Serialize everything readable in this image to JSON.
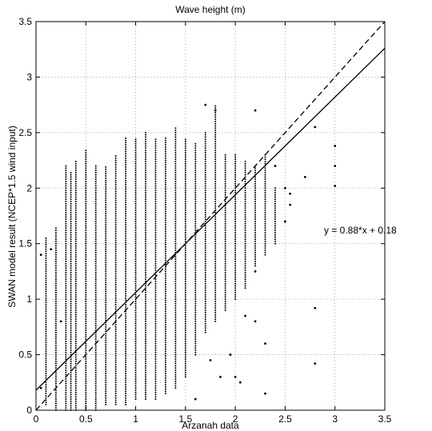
{
  "chart_data": {
    "type": "scatter",
    "title": "Wave height (m)",
    "xlabel": "Arzanah data",
    "ylabel": "SWAN model result (NCEP*1.5 wind input)",
    "xlim": [
      0,
      3.5
    ],
    "ylim": [
      0,
      3.5
    ],
    "xticks": [
      "0",
      "0.5",
      "1",
      "1.5",
      "2",
      "2.5",
      "3",
      "3.5"
    ],
    "yticks": [
      "0",
      "0.5",
      "1",
      "1.5",
      "2",
      "2.5",
      "3",
      "3.5"
    ],
    "grid": true,
    "annotation": "y = 0.88*x + 0.18",
    "lines": [
      {
        "style": "solid",
        "slope": 0.88,
        "intercept": 0.18
      },
      {
        "style": "dashed",
        "slope": 1.0,
        "intercept": 0.0
      }
    ],
    "columns": [
      {
        "x": 0.1,
        "y": [
          0.05,
          1.55
        ]
      },
      {
        "x": 0.2,
        "y": [
          0.0,
          1.65
        ]
      },
      {
        "x": 0.3,
        "y": [
          0.0,
          2.2
        ]
      },
      {
        "x": 0.35,
        "y": [
          0.0,
          2.15
        ]
      },
      {
        "x": 0.4,
        "y": [
          0.0,
          2.25
        ]
      },
      {
        "x": 0.5,
        "y": [
          0.0,
          2.35
        ]
      },
      {
        "x": 0.6,
        "y": [
          0.0,
          2.2
        ]
      },
      {
        "x": 0.7,
        "y": [
          0.05,
          2.2
        ]
      },
      {
        "x": 0.8,
        "y": [
          0.05,
          2.3
        ]
      },
      {
        "x": 0.9,
        "y": [
          0.05,
          2.45
        ]
      },
      {
        "x": 1.0,
        "y": [
          0.1,
          2.45
        ]
      },
      {
        "x": 1.1,
        "y": [
          0.1,
          2.5
        ]
      },
      {
        "x": 1.2,
        "y": [
          0.1,
          2.45
        ]
      },
      {
        "x": 1.3,
        "y": [
          0.15,
          2.45
        ]
      },
      {
        "x": 1.4,
        "y": [
          0.2,
          2.55
        ]
      },
      {
        "x": 1.5,
        "y": [
          0.3,
          2.45
        ]
      },
      {
        "x": 1.6,
        "y": [
          0.5,
          2.4
        ]
      },
      {
        "x": 1.7,
        "y": [
          0.7,
          2.5
        ]
      },
      {
        "x": 1.8,
        "y": [
          0.8,
          2.75
        ]
      },
      {
        "x": 1.9,
        "y": [
          0.9,
          2.3
        ]
      },
      {
        "x": 2.0,
        "y": [
          1.0,
          2.3
        ]
      },
      {
        "x": 2.1,
        "y": [
          1.1,
          2.25
        ]
      },
      {
        "x": 2.2,
        "y": [
          1.3,
          2.2
        ]
      },
      {
        "x": 2.3,
        "y": [
          1.4,
          2.3
        ]
      },
      {
        "x": 2.4,
        "y": [
          1.5,
          2.0
        ]
      }
    ],
    "points": [
      {
        "x": 0.05,
        "y": 1.4
      },
      {
        "x": 0.05,
        "y": 0.2
      },
      {
        "x": 0.15,
        "y": 1.45
      },
      {
        "x": 0.25,
        "y": 0.8
      },
      {
        "x": 1.6,
        "y": 0.1
      },
      {
        "x": 1.7,
        "y": 2.75
      },
      {
        "x": 1.8,
        "y": 2.7
      },
      {
        "x": 2.0,
        "y": 0.3
      },
      {
        "x": 2.2,
        "y": 2.7
      },
      {
        "x": 2.2,
        "y": 0.8
      },
      {
        "x": 2.3,
        "y": 0.6
      },
      {
        "x": 2.3,
        "y": 0.15
      },
      {
        "x": 2.4,
        "y": 2.2
      },
      {
        "x": 2.5,
        "y": 1.7
      },
      {
        "x": 2.5,
        "y": 2.0
      },
      {
        "x": 2.55,
        "y": 1.95
      },
      {
        "x": 2.55,
        "y": 1.85
      },
      {
        "x": 2.7,
        "y": 2.1
      },
      {
        "x": 2.8,
        "y": 2.55
      },
      {
        "x": 2.8,
        "y": 0.92
      },
      {
        "x": 2.8,
        "y": 0.42
      },
      {
        "x": 3.0,
        "y": 2.38
      },
      {
        "x": 3.0,
        "y": 2.2
      },
      {
        "x": 3.0,
        "y": 2.02
      },
      {
        "x": 2.1,
        "y": 0.85
      },
      {
        "x": 2.2,
        "y": 1.25
      },
      {
        "x": 1.95,
        "y": 0.5
      },
      {
        "x": 2.05,
        "y": 0.25
      },
      {
        "x": 1.85,
        "y": 0.3
      },
      {
        "x": 1.75,
        "y": 0.45
      }
    ]
  }
}
